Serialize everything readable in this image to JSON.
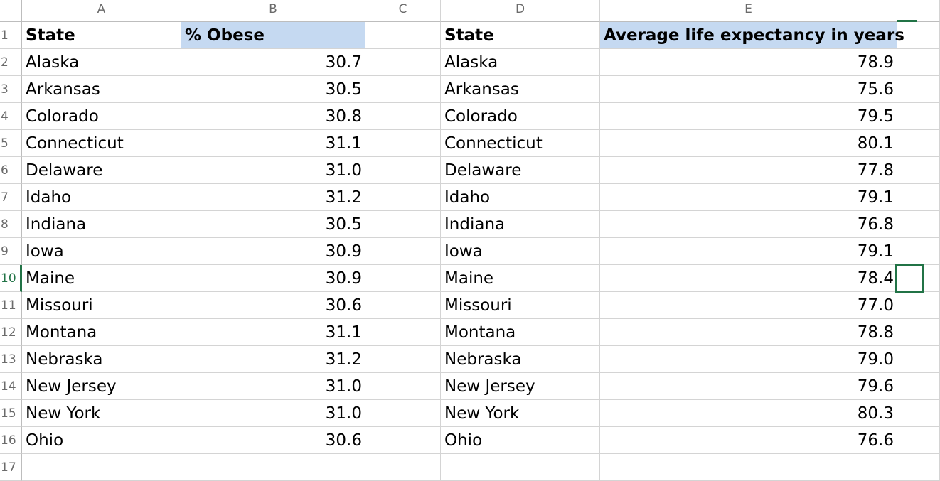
{
  "spreadsheet": {
    "columns": [
      "A",
      "B",
      "C",
      "D",
      "E"
    ],
    "header_row": {
      "A": "State",
      "B": "% Obese",
      "C": "",
      "D": "State",
      "E": "Average life expectancy in years"
    },
    "rows": [
      {
        "row": "2",
        "A": "Alaska",
        "B": "30.7",
        "D": "Alaska",
        "E": "78.9"
      },
      {
        "row": "3",
        "A": "Arkansas",
        "B": "30.5",
        "D": "Arkansas",
        "E": "75.6"
      },
      {
        "row": "4",
        "A": "Colorado",
        "B": "30.8",
        "D": "Colorado",
        "E": "79.5"
      },
      {
        "row": "5",
        "A": "Connecticut",
        "B": "31.1",
        "D": "Connecticut",
        "E": "80.1"
      },
      {
        "row": "6",
        "A": "Delaware",
        "B": "31.0",
        "D": "Delaware",
        "E": "77.8"
      },
      {
        "row": "7",
        "A": "Idaho",
        "B": "31.2",
        "D": "Idaho",
        "E": "79.1"
      },
      {
        "row": "8",
        "A": "Indiana",
        "B": "30.5",
        "D": "Indiana",
        "E": "76.8"
      },
      {
        "row": "9",
        "A": "Iowa",
        "B": "30.9",
        "D": "Iowa",
        "E": "79.1"
      },
      {
        "row": "10",
        "A": "Maine",
        "B": "30.9",
        "D": "Maine",
        "E": "78.4"
      },
      {
        "row": "11",
        "A": "Missouri",
        "B": "30.6",
        "D": "Missouri",
        "E": "77.0"
      },
      {
        "row": "12",
        "A": "Montana",
        "B": "31.1",
        "D": "Montana",
        "E": "78.8"
      },
      {
        "row": "13",
        "A": "Nebraska",
        "B": "31.2",
        "D": "Nebraska",
        "E": "79.0"
      },
      {
        "row": "14",
        "A": "New Jersey",
        "B": "31.0",
        "D": "New Jersey",
        "E": "79.6"
      },
      {
        "row": "15",
        "A": "New York",
        "B": "31.0",
        "D": "New York",
        "E": "80.3"
      },
      {
        "row": "16",
        "A": "Ohio",
        "B": "30.6",
        "D": "Ohio",
        "E": "76.6"
      },
      {
        "row": "17",
        "A": "",
        "B": "",
        "D": "",
        "E": ""
      }
    ],
    "selected_cell": "F10",
    "accent_color": "#217346",
    "header_highlight_color": "#c5d9f1"
  }
}
